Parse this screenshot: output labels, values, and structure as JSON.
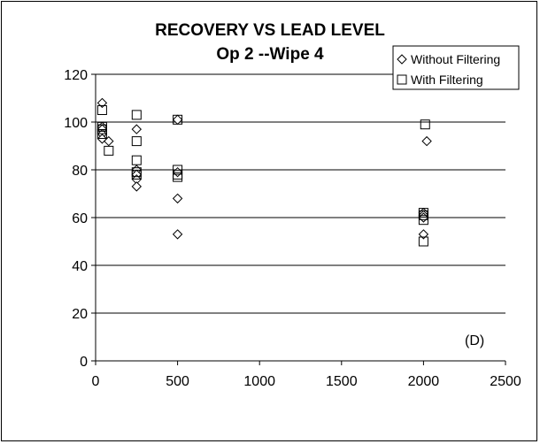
{
  "chart_data": {
    "type": "scatter",
    "title": "RECOVERY VS LEAD LEVEL",
    "subtitle": "Op 2 --Wipe 4",
    "xlabel": "",
    "ylabel": "",
    "xlim": [
      0,
      2500
    ],
    "ylim": [
      0,
      120
    ],
    "x_ticks": [
      "0",
      "500",
      "1000",
      "1500",
      "2000",
      "2500"
    ],
    "y_ticks": [
      "0",
      "20",
      "40",
      "60",
      "80",
      "100",
      "120"
    ],
    "grid": "horizontal",
    "legend_position": "top-right",
    "annotation": "(D)",
    "series": [
      {
        "name": "Without Filtering",
        "marker": "diamond",
        "points": [
          [
            40,
            108
          ],
          [
            40,
            98
          ],
          [
            40,
            97
          ],
          [
            40,
            95
          ],
          [
            40,
            93
          ],
          [
            80,
            92
          ],
          [
            250,
            97
          ],
          [
            250,
            80
          ],
          [
            250,
            78
          ],
          [
            250,
            76
          ],
          [
            250,
            73
          ],
          [
            500,
            101
          ],
          [
            500,
            79
          ],
          [
            500,
            68
          ],
          [
            500,
            53
          ],
          [
            2000,
            62
          ],
          [
            2000,
            61
          ],
          [
            2000,
            60
          ],
          [
            2000,
            53
          ],
          [
            2020,
            92
          ]
        ]
      },
      {
        "name": "With Filtering",
        "marker": "square",
        "points": [
          [
            40,
            105
          ],
          [
            40,
            98
          ],
          [
            40,
            97
          ],
          [
            40,
            95
          ],
          [
            80,
            88
          ],
          [
            250,
            103
          ],
          [
            250,
            92
          ],
          [
            250,
            84
          ],
          [
            250,
            79
          ],
          [
            250,
            78
          ],
          [
            500,
            101
          ],
          [
            500,
            80
          ],
          [
            500,
            78
          ],
          [
            500,
            77
          ],
          [
            2000,
            62
          ],
          [
            2000,
            61
          ],
          [
            2000,
            59
          ],
          [
            2000,
            50
          ],
          [
            2010,
            99
          ]
        ]
      }
    ]
  }
}
